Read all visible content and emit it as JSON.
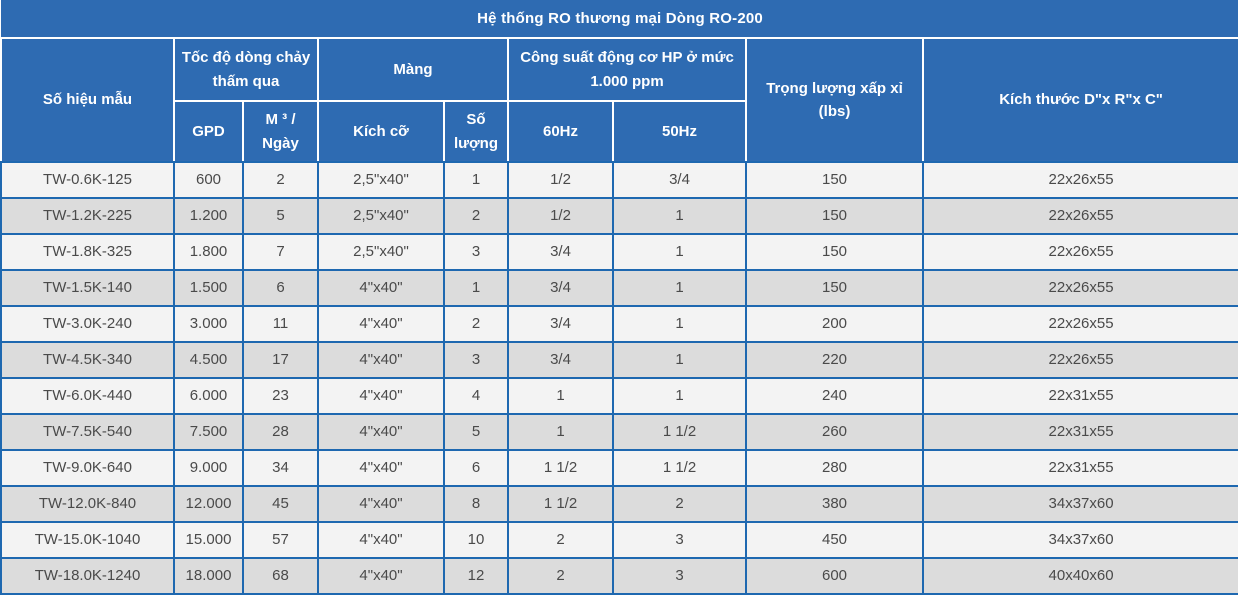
{
  "title": "Hệ thống RO thương mại Dòng RO-200",
  "header": {
    "model": "Số hiệu mẫu",
    "flow_group": "Tốc độ dòng chảy thấm qua",
    "gpd": "GPD",
    "m3_day": "M ³ / Ngày",
    "membrane_group": "Màng",
    "size": "Kích cỡ",
    "quantity": "Số lượng",
    "power_group": "Công suất động cơ HP ở mức 1.000 ppm",
    "hz60": "60Hz",
    "hz50": "50Hz",
    "weight": "Trọng lượng xấp xỉ (lbs)",
    "dimensions": "Kích thước D\"x R\"x C\""
  },
  "column_keys": [
    "model",
    "gpd",
    "m3-per-day",
    "membrane-size",
    "membrane-quantity",
    "60hz",
    "50hz",
    "weight-lbs",
    "dimensions"
  ],
  "rows": [
    [
      "TW-0.6K-125",
      "600",
      "2",
      "2,5\"x40\"",
      "1",
      "1/2",
      "3/4",
      "150",
      "22x26x55"
    ],
    [
      "TW-1.2K-225",
      "1.200",
      "5",
      "2,5\"x40\"",
      "2",
      "1/2",
      "1",
      "150",
      "22x26x55"
    ],
    [
      "TW-1.8K-325",
      "1.800",
      "7",
      "2,5\"x40\"",
      "3",
      "3/4",
      "1",
      "150",
      "22x26x55"
    ],
    [
      "TW-1.5K-140",
      "1.500",
      "6",
      "4\"x40\"",
      "1",
      "3/4",
      "1",
      "150",
      "22x26x55"
    ],
    [
      "TW-3.0K-240",
      "3.000",
      "11",
      "4\"x40\"",
      "2",
      "3/4",
      "1",
      "200",
      "22x26x55"
    ],
    [
      "TW-4.5K-340",
      "4.500",
      "17",
      "4\"x40\"",
      "3",
      "3/4",
      "1",
      "220",
      "22x26x55"
    ],
    [
      "TW-6.0K-440",
      "6.000",
      "23",
      "4\"x40\"",
      "4",
      "1",
      "1",
      "240",
      "22x31x55"
    ],
    [
      "TW-7.5K-540",
      "7.500",
      "28",
      "4\"x40\"",
      "5",
      "1",
      "1 1/2",
      "260",
      "22x31x55"
    ],
    [
      "TW-9.0K-640",
      "9.000",
      "34",
      "4\"x40\"",
      "6",
      "1 1/2",
      "1 1/2",
      "280",
      "22x31x55"
    ],
    [
      "TW-12.0K-840",
      "12.000",
      "45",
      "4\"x40\"",
      "8",
      "1 1/2",
      "2",
      "380",
      "34x37x60"
    ],
    [
      "TW-15.0K-1040",
      "15.000",
      "57",
      "4\"x40\"",
      "10",
      "2",
      "3",
      "450",
      "34x37x60"
    ],
    [
      "TW-18.0K-1240",
      "18.000",
      "68",
      "4\"x40\"",
      "12",
      "2",
      "3",
      "600",
      "40x40x60"
    ]
  ],
  "colors": {
    "header_blue": "#2E6BB2",
    "grid_blue": "#1E68B0",
    "row_light": "#F3F3F3",
    "row_gray": "#DCDCDC",
    "header_text": "#FFFFFF",
    "body_text": "#4A4A4A"
  }
}
